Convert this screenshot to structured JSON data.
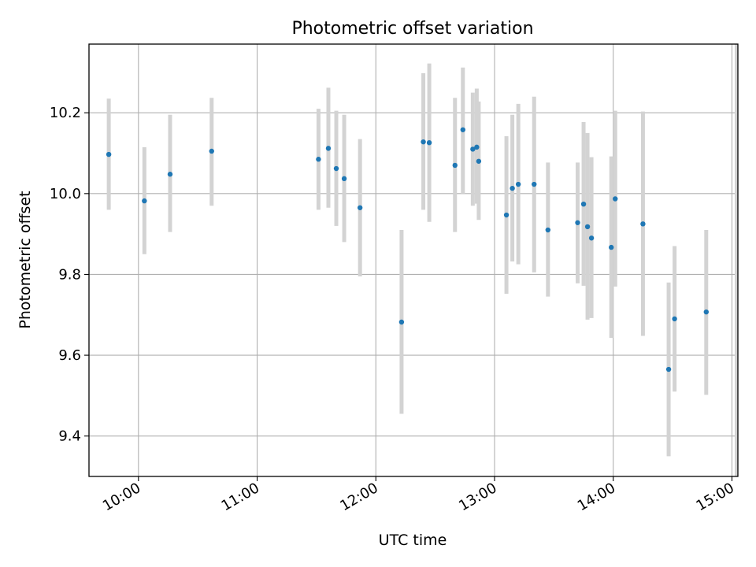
{
  "chart_data": {
    "type": "scatter",
    "title": "Photometric offset variation",
    "xlabel": "UTC time",
    "ylabel": "Photometric offset",
    "x_ticks": [
      "10:00",
      "11:00",
      "12:00",
      "13:00",
      "14:00",
      "15:00"
    ],
    "y_ticks": [
      9.4,
      9.6,
      9.8,
      10.0,
      10.2
    ],
    "xlim": [
      "09:35",
      "15:03"
    ],
    "ylim": [
      9.3,
      10.37
    ],
    "grid": true,
    "marker_color": "#1f77b4",
    "errorbar_color": "#d3d3d3",
    "points": [
      {
        "t": "09:45",
        "y": 10.097,
        "lo": 9.96,
        "hi": 10.235
      },
      {
        "t": "10:03",
        "y": 9.982,
        "lo": 9.85,
        "hi": 10.115
      },
      {
        "t": "10:16",
        "y": 10.048,
        "lo": 9.905,
        "hi": 10.195
      },
      {
        "t": "10:37",
        "y": 10.105,
        "lo": 9.97,
        "hi": 10.237
      },
      {
        "t": "11:31",
        "y": 10.085,
        "lo": 9.96,
        "hi": 10.21
      },
      {
        "t": "11:36",
        "y": 10.112,
        "lo": 9.965,
        "hi": 10.262
      },
      {
        "t": "11:40",
        "y": 10.062,
        "lo": 9.92,
        "hi": 10.205
      },
      {
        "t": "11:44",
        "y": 10.037,
        "lo": 9.88,
        "hi": 10.195
      },
      {
        "t": "11:52",
        "y": 9.965,
        "lo": 9.795,
        "hi": 10.135
      },
      {
        "t": "12:13",
        "y": 9.682,
        "lo": 9.455,
        "hi": 9.91
      },
      {
        "t": "12:24",
        "y": 10.128,
        "lo": 9.96,
        "hi": 10.298
      },
      {
        "t": "12:27",
        "y": 10.126,
        "lo": 9.93,
        "hi": 10.322
      },
      {
        "t": "12:40",
        "y": 10.07,
        "lo": 9.905,
        "hi": 10.237
      },
      {
        "t": "12:44",
        "y": 10.158,
        "lo": 10.0,
        "hi": 10.312
      },
      {
        "t": "12:49",
        "y": 10.11,
        "lo": 9.97,
        "hi": 10.25
      },
      {
        "t": "12:51",
        "y": 10.115,
        "lo": 9.975,
        "hi": 10.26
      },
      {
        "t": "12:52",
        "y": 10.08,
        "lo": 9.935,
        "hi": 10.228
      },
      {
        "t": "13:06",
        "y": 9.947,
        "lo": 9.752,
        "hi": 10.142
      },
      {
        "t": "13:09",
        "y": 10.013,
        "lo": 9.832,
        "hi": 10.195
      },
      {
        "t": "13:12",
        "y": 10.023,
        "lo": 9.825,
        "hi": 10.222
      },
      {
        "t": "13:20",
        "y": 10.023,
        "lo": 9.805,
        "hi": 10.24
      },
      {
        "t": "13:27",
        "y": 9.91,
        "lo": 9.745,
        "hi": 10.077
      },
      {
        "t": "13:42",
        "y": 9.928,
        "lo": 9.778,
        "hi": 10.077
      },
      {
        "t": "13:45",
        "y": 9.974,
        "lo": 9.772,
        "hi": 10.177
      },
      {
        "t": "13:47",
        "y": 9.918,
        "lo": 9.688,
        "hi": 10.15
      },
      {
        "t": "13:49",
        "y": 9.89,
        "lo": 9.692,
        "hi": 10.09
      },
      {
        "t": "13:59",
        "y": 9.867,
        "lo": 9.643,
        "hi": 10.092
      },
      {
        "t": "14:01",
        "y": 9.987,
        "lo": 9.77,
        "hi": 10.205
      },
      {
        "t": "14:15",
        "y": 9.925,
        "lo": 9.648,
        "hi": 10.203
      },
      {
        "t": "14:28",
        "y": 9.565,
        "lo": 9.35,
        "hi": 9.78
      },
      {
        "t": "14:31",
        "y": 9.69,
        "lo": 9.51,
        "hi": 9.87
      },
      {
        "t": "14:47",
        "y": 9.707,
        "lo": 9.502,
        "hi": 9.91
      }
    ]
  }
}
